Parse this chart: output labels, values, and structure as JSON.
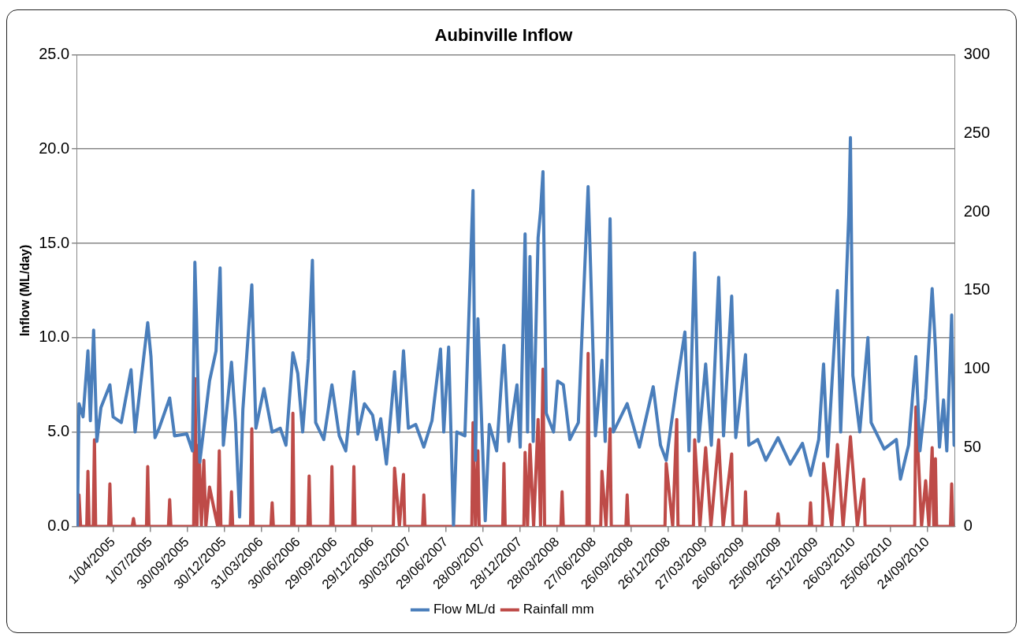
{
  "chart_data": {
    "type": "line",
    "title": "Aubinville Inflow",
    "ylabel": "Inflow (ML/day)",
    "xlim": [
      "2005-01-01",
      "2010-12-01"
    ],
    "xticks": [
      {
        "value": "2005-04-01",
        "label": "1/04/2005"
      },
      {
        "value": "2005-07-01",
        "label": "1/07/2005"
      },
      {
        "value": "2005-09-30",
        "label": "30/09/2005"
      },
      {
        "value": "2005-12-30",
        "label": "30/12/2005"
      },
      {
        "value": "2006-03-31",
        "label": "31/03/2006"
      },
      {
        "value": "2006-06-30",
        "label": "30/06/2006"
      },
      {
        "value": "2006-09-29",
        "label": "29/09/2006"
      },
      {
        "value": "2006-12-29",
        "label": "29/12/2006"
      },
      {
        "value": "2007-03-30",
        "label": "30/03/2007"
      },
      {
        "value": "2007-06-29",
        "label": "29/06/2007"
      },
      {
        "value": "2007-09-28",
        "label": "28/09/2007"
      },
      {
        "value": "2007-12-28",
        "label": "28/12/2007"
      },
      {
        "value": "2008-03-28",
        "label": "28/03/2008"
      },
      {
        "value": "2008-06-27",
        "label": "27/06/2008"
      },
      {
        "value": "2008-09-26",
        "label": "26/09/2008"
      },
      {
        "value": "2008-12-26",
        "label": "26/12/2008"
      },
      {
        "value": "2009-03-27",
        "label": "27/03/2009"
      },
      {
        "value": "2009-06-26",
        "label": "26/06/2009"
      },
      {
        "value": "2009-09-25",
        "label": "25/09/2009"
      },
      {
        "value": "2009-12-25",
        "label": "25/12/2009"
      },
      {
        "value": "2010-03-26",
        "label": "26/03/2010"
      },
      {
        "value": "2010-06-25",
        "label": "25/06/2010"
      },
      {
        "value": "2010-09-24",
        "label": "24/09/2010"
      }
    ],
    "ylim": [
      0,
      25
    ],
    "yticks": [
      {
        "value": 0,
        "label": "0.0"
      },
      {
        "value": 5,
        "label": "5.0"
      },
      {
        "value": 10,
        "label": "10.0"
      },
      {
        "value": 15,
        "label": "15.0"
      },
      {
        "value": 20,
        "label": "20.0"
      },
      {
        "value": 25,
        "label": "25.0"
      }
    ],
    "y2lim": [
      0,
      300
    ],
    "y2ticks": [
      0,
      50,
      100,
      150,
      200,
      250,
      300
    ],
    "grid": "y",
    "legend": "bottom",
    "marker": "none",
    "line_style": "solid",
    "series": [
      {
        "name": "Flow ML/d",
        "color": "#4a7ebb",
        "x": [
          "2005-01-03",
          "2005-01-07",
          "2005-01-17",
          "2005-01-29",
          "2005-02-04",
          "2005-02-12",
          "2005-02-20",
          "2005-03-02",
          "2005-03-24",
          "2005-04-01",
          "2005-04-21",
          "2005-05-15",
          "2005-05-25",
          "2005-06-25",
          "2005-07-03",
          "2005-07-13",
          "2005-07-23",
          "2005-08-18",
          "2005-08-30",
          "2005-09-29",
          "2005-10-13",
          "2005-10-19",
          "2005-10-23",
          "2005-10-31",
          "2005-11-24",
          "2005-12-10",
          "2005-12-20",
          "2005-12-28",
          "2006-01-17",
          "2006-01-27",
          "2006-02-06",
          "2006-02-14",
          "2006-03-08",
          "2006-03-18",
          "2006-04-07",
          "2006-04-27",
          "2006-05-17",
          "2006-05-31",
          "2006-06-17",
          "2006-06-29",
          "2006-07-11",
          "2006-07-25",
          "2006-08-04",
          "2006-08-12",
          "2006-09-01",
          "2006-09-21",
          "2006-10-09",
          "2006-10-25",
          "2006-11-14",
          "2006-11-24",
          "2006-12-10",
          "2006-12-30",
          "2007-01-09",
          "2007-01-19",
          "2007-02-02",
          "2007-02-22",
          "2007-03-04",
          "2007-03-16",
          "2007-03-28",
          "2007-04-15",
          "2007-05-05",
          "2007-05-25",
          "2007-06-15",
          "2007-06-23",
          "2007-07-05",
          "2007-07-17",
          "2007-07-25",
          "2007-08-14",
          "2007-09-03",
          "2007-09-09",
          "2007-09-15",
          "2007-10-03",
          "2007-10-13",
          "2007-10-31",
          "2007-11-18",
          "2007-11-30",
          "2007-12-20",
          "2007-12-28",
          "2008-01-09",
          "2008-01-15",
          "2008-01-21",
          "2008-01-29",
          "2008-02-10",
          "2008-02-16",
          "2008-02-22",
          "2008-03-01",
          "2008-03-19",
          "2008-03-29",
          "2008-04-12",
          "2008-04-28",
          "2008-05-19",
          "2008-06-12",
          "2008-06-18",
          "2008-06-30",
          "2008-07-16",
          "2008-07-24",
          "2008-08-05",
          "2008-08-13",
          "2008-09-16",
          "2008-10-16",
          "2008-11-19",
          "2008-12-07",
          "2008-12-21",
          "2009-01-16",
          "2009-02-05",
          "2009-02-15",
          "2009-03-01",
          "2009-03-11",
          "2009-03-28",
          "2009-04-11",
          "2009-04-29",
          "2009-05-11",
          "2009-05-31",
          "2009-06-10",
          "2009-07-04",
          "2009-07-12",
          "2009-08-03",
          "2009-08-23",
          "2009-09-22",
          "2009-10-22",
          "2009-11-21",
          "2009-12-11",
          "2009-12-31",
          "2010-01-12",
          "2010-01-22",
          "2010-02-15",
          "2010-02-23",
          "2010-03-15",
          "2010-03-19",
          "2010-03-25",
          "2010-04-11",
          "2010-05-01",
          "2010-05-09",
          "2010-06-10",
          "2010-07-10",
          "2010-07-20",
          "2010-08-09",
          "2010-08-27",
          "2010-09-06",
          "2010-09-20",
          "2010-10-06",
          "2010-10-14",
          "2010-10-24",
          "2010-11-03",
          "2010-11-11",
          "2010-11-23",
          "2010-11-29"
        ],
        "values": [
          0,
          6.5,
          5.8,
          9.3,
          5.6,
          10.4,
          4.5,
          6.3,
          7.5,
          5.8,
          5.5,
          8.3,
          5.0,
          10.8,
          9.0,
          4.7,
          5.2,
          6.8,
          4.8,
          4.9,
          4.0,
          14.0,
          11.0,
          3.4,
          7.7,
          9.3,
          13.7,
          4.3,
          8.7,
          5.5,
          0.5,
          6.2,
          12.8,
          5.2,
          7.3,
          5.0,
          5.2,
          4.3,
          9.2,
          8.1,
          5.0,
          8.9,
          14.1,
          5.5,
          4.6,
          7.5,
          4.8,
          4.0,
          8.2,
          4.9,
          6.5,
          5.9,
          4.6,
          5.7,
          3.3,
          8.2,
          5.0,
          9.3,
          5.2,
          5.4,
          4.2,
          5.6,
          9.4,
          5.0,
          9.5,
          0,
          5.0,
          4.8,
          17.8,
          3.5,
          11.0,
          0.3,
          5.4,
          4.0,
          9.6,
          4.5,
          7.5,
          4.2,
          15.5,
          5.0,
          14.3,
          4.5,
          15.3,
          16.7,
          18.8,
          6.0,
          5.0,
          7.7,
          7.5,
          4.6,
          5.5,
          18.0,
          13.8,
          4.8,
          8.8,
          4.5,
          16.3,
          5.0,
          6.5,
          4.2,
          7.4,
          4.3,
          3.5,
          7.5,
          10.3,
          4.0,
          14.5,
          4.5,
          8.6,
          4.3,
          13.2,
          4.8,
          12.2,
          4.7,
          9.1,
          4.3,
          4.6,
          3.5,
          4.7,
          3.3,
          4.4,
          2.7,
          4.6,
          8.6,
          3.7,
          12.5,
          5.0,
          16.5,
          20.6,
          8.0,
          5.0,
          10.0,
          5.5,
          4.1,
          4.6,
          2.5,
          4.3,
          9.0,
          4.0,
          6.8,
          12.6,
          9.5,
          4.2,
          6.7,
          4.0,
          11.2,
          4.3
        ]
      },
      {
        "name": "Rainfall mm",
        "color": "#be4b48",
        "axis": "y2",
        "x": [
          "2005-01-03",
          "2005-01-07",
          "2005-01-11",
          "2005-01-26",
          "2005-01-29",
          "2005-02-01",
          "2005-02-11",
          "2005-02-14",
          "2005-02-17",
          "2005-03-21",
          "2005-03-24",
          "2005-03-27",
          "2005-05-18",
          "2005-05-21",
          "2005-05-24",
          "2005-06-22",
          "2005-06-25",
          "2005-06-28",
          "2005-08-15",
          "2005-08-18",
          "2005-08-21",
          "2005-10-16",
          "2005-10-19",
          "2005-10-24",
          "2005-10-29",
          "2005-11-04",
          "2005-11-10",
          "2005-11-15",
          "2005-11-24",
          "2005-12-14",
          "2005-12-18",
          "2005-12-22",
          "2006-01-14",
          "2006-01-17",
          "2006-01-20",
          "2006-03-05",
          "2006-03-08",
          "2006-03-11",
          "2006-04-24",
          "2006-04-27",
          "2006-04-30",
          "2006-06-14",
          "2006-06-17",
          "2006-06-20",
          "2006-07-24",
          "2006-07-27",
          "2006-07-30",
          "2006-09-18",
          "2006-09-21",
          "2006-09-24",
          "2006-11-11",
          "2006-11-14",
          "2006-11-17",
          "2007-02-19",
          "2007-02-22",
          "2007-03-06",
          "2007-03-16",
          "2007-03-19",
          "2007-05-02",
          "2007-05-05",
          "2007-05-08",
          "2007-08-31",
          "2007-09-03",
          "2007-09-09",
          "2007-09-15",
          "2007-09-18",
          "2007-11-15",
          "2007-11-18",
          "2007-11-21",
          "2008-01-06",
          "2008-01-09",
          "2008-01-15",
          "2008-01-21",
          "2008-01-30",
          "2008-02-10",
          "2008-02-16",
          "2008-02-22",
          "2008-02-26",
          "2008-04-06",
          "2008-04-09",
          "2008-04-12",
          "2008-06-09",
          "2008-06-12",
          "2008-06-15",
          "2008-07-13",
          "2008-07-16",
          "2008-07-26",
          "2008-08-05",
          "2008-08-08",
          "2008-09-13",
          "2008-09-16",
          "2008-09-19",
          "2008-12-18",
          "2008-12-21",
          "2009-01-06",
          "2009-01-16",
          "2009-01-19",
          "2009-02-26",
          "2009-03-01",
          "2009-03-14",
          "2009-03-28",
          "2009-04-10",
          "2009-04-29",
          "2009-05-10",
          "2009-05-31",
          "2009-06-03",
          "2009-07-01",
          "2009-07-04",
          "2009-07-07",
          "2009-09-19",
          "2009-09-22",
          "2009-09-25",
          "2009-12-08",
          "2009-12-11",
          "2009-12-14",
          "2010-01-09",
          "2010-01-12",
          "2010-02-01",
          "2010-02-15",
          "2010-03-01",
          "2010-03-19",
          "2010-04-05",
          "2010-04-21",
          "2010-04-24",
          "2010-08-24",
          "2010-08-27",
          "2010-09-10",
          "2010-09-20",
          "2010-09-28",
          "2010-10-06",
          "2010-10-10",
          "2010-10-14",
          "2010-10-17",
          "2010-11-20",
          "2010-11-23",
          "2010-11-26"
        ],
        "values": [
          0,
          20,
          0,
          0,
          35,
          0,
          0,
          55,
          0,
          0,
          27,
          0,
          0,
          5,
          0,
          0,
          38,
          0,
          0,
          17,
          0,
          0,
          94,
          0,
          52,
          0,
          42,
          0,
          25,
          0,
          48,
          0,
          0,
          22,
          0,
          0,
          62,
          0,
          0,
          15,
          0,
          0,
          72,
          0,
          0,
          32,
          0,
          0,
          38,
          0,
          0,
          38,
          0,
          0,
          37,
          0,
          33,
          0,
          0,
          20,
          0,
          0,
          66,
          0,
          48,
          0,
          0,
          40,
          0,
          0,
          47,
          0,
          52,
          0,
          68,
          0,
          100,
          0,
          0,
          22,
          0,
          0,
          110,
          0,
          0,
          35,
          0,
          62,
          0,
          0,
          20,
          0,
          0,
          40,
          0,
          68,
          0,
          0,
          55,
          0,
          50,
          0,
          55,
          0,
          46,
          0,
          0,
          22,
          0,
          0,
          8,
          0,
          0,
          15,
          0,
          0,
          40,
          0,
          52,
          0,
          57,
          0,
          30,
          0,
          0,
          76,
          0,
          29,
          0,
          50,
          0,
          43,
          0,
          0,
          27,
          0
        ]
      }
    ]
  }
}
